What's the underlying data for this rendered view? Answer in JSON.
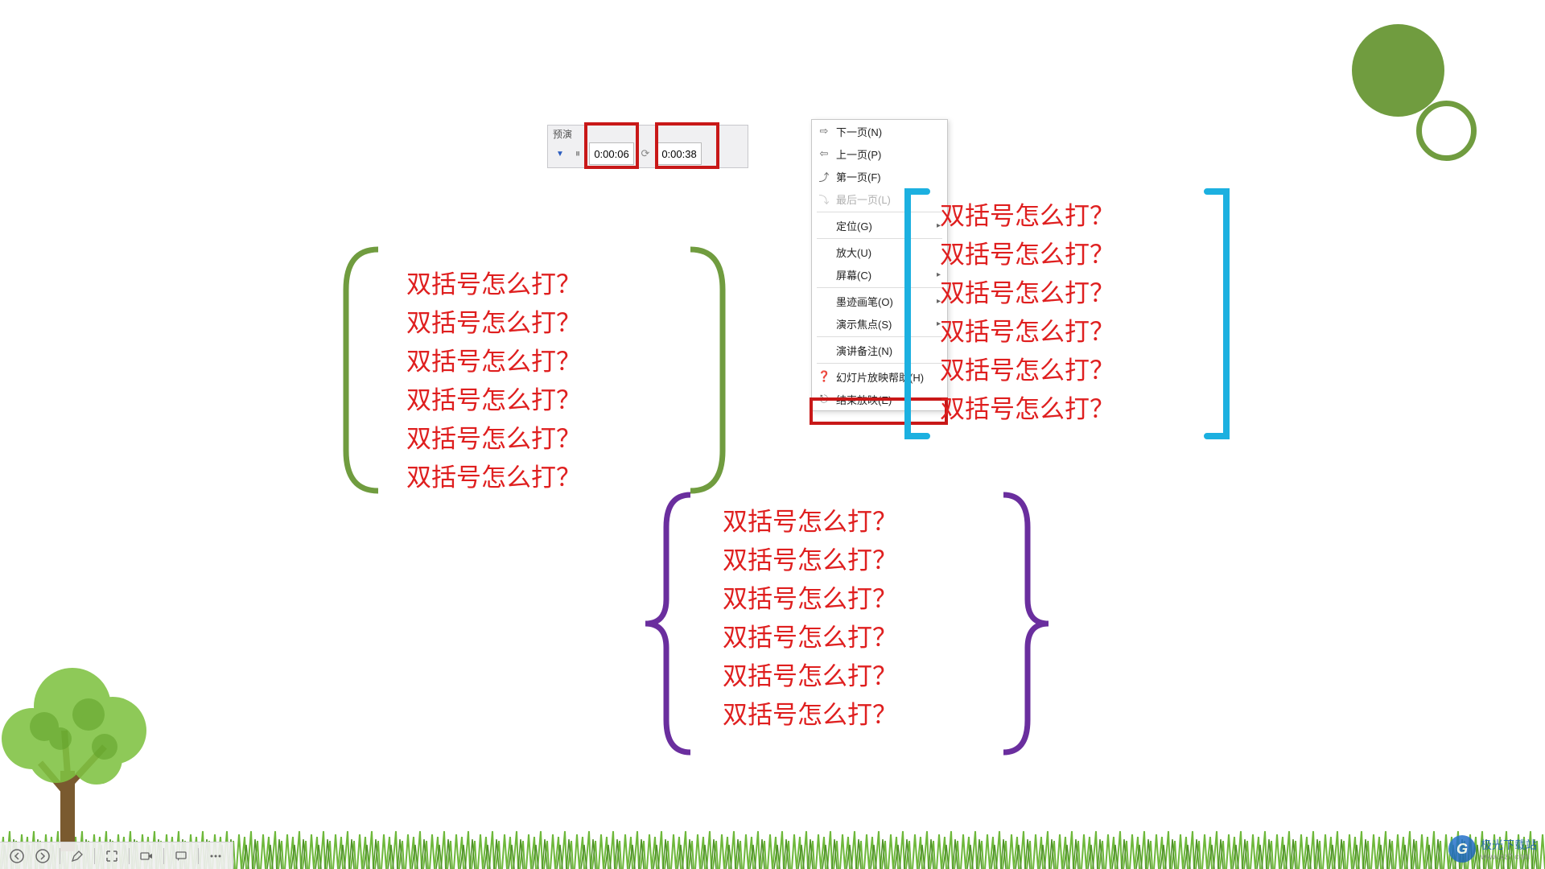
{
  "timer": {
    "header": "预演",
    "field1": "0:00:06",
    "field2": "0:00:38"
  },
  "menu": {
    "items": [
      {
        "label": "下一页(N)",
        "icon": "⇨",
        "disabled": false
      },
      {
        "label": "上一页(P)",
        "icon": "⇦",
        "disabled": false
      },
      {
        "label": "第一页(F)",
        "icon": "⤴",
        "disabled": false
      },
      {
        "label": "最后一页(L)",
        "icon": "⤵",
        "disabled": true
      },
      {
        "sep": true
      },
      {
        "label": "定位(G)",
        "submenu": true
      },
      {
        "sep": true
      },
      {
        "label": "放大(U)"
      },
      {
        "label": "屏幕(C)",
        "submenu": true
      },
      {
        "sep": true
      },
      {
        "label": "墨迹画笔(O)",
        "submenu": true
      },
      {
        "label": "演示焦点(S)",
        "submenu": true
      },
      {
        "sep": true
      },
      {
        "label": "演讲备注(N)"
      },
      {
        "sep": true
      },
      {
        "label": "幻灯片放映帮助(H)",
        "icon": "❓"
      },
      {
        "label": "结束放映(E)",
        "icon": "⎋"
      }
    ]
  },
  "sample_text": "双括号怎么打？",
  "colors": {
    "text_red": "#df1f1f",
    "highlight_red": "#c81818",
    "bracket_green": "#709c3f",
    "bracket_blue": "#1cb0e0",
    "bracket_purple": "#6a2e9e",
    "circle_green": "#709c3f",
    "grass_green": "#6eb83b"
  },
  "watermark": {
    "logo": "G",
    "title": "极光下载站",
    "url": "www.xz7.com"
  },
  "text_blocks": {
    "repeat_count": 6
  }
}
